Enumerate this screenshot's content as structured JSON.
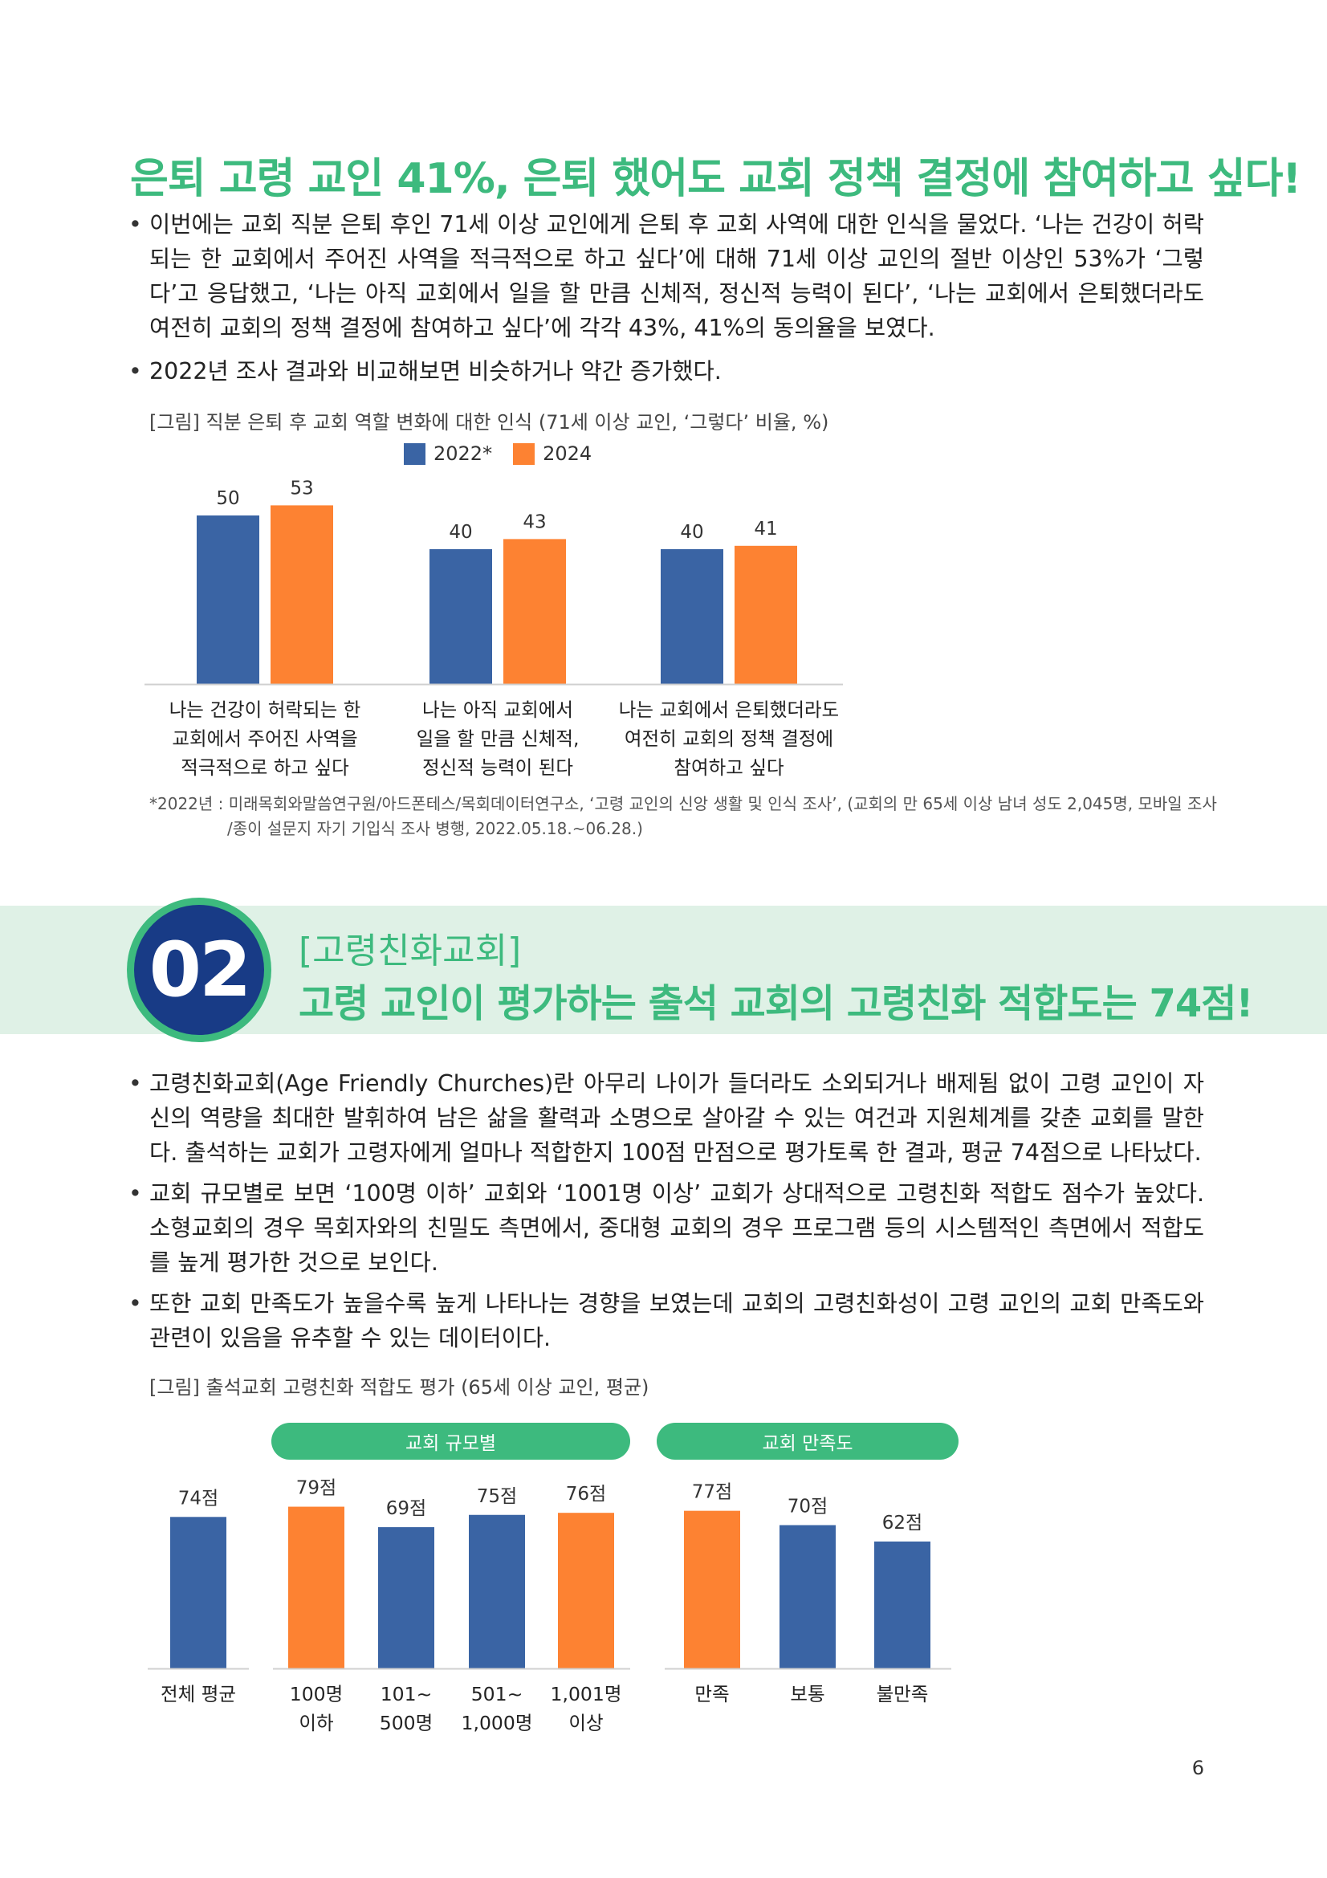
{
  "section1": {
    "title": "은퇴 고령 교인 41%, 은퇴 했어도 교회 정책 결정에 참여하고 싶다!",
    "bullets": [
      "이번에는 교회 직분 은퇴 후인 71세 이상 교인에게 은퇴 후 교회 사역에 대한 인식을 물었다. ‘나는 건강이 허락되는 한 교회에서 주어진 사역을 적극적으로 하고 싶다’에 대해 71세 이상 교인의 절반 이상인 53%가 ‘그렇다’고 응답했고, ‘나는 아직 교회에서 일을 할 만큼 신체적, 정신적 능력이 된다’, ‘나는 교회에서 은퇴했더라도 여전히 교회의 정책 결정에 참여하고 싶다’에 각각 43%, 41%의 동의율을 보였다.",
      "2022년 조사 결과와 비교해보면 비슷하거나 약간 증가했다."
    ],
    "figure_caption": "[그림] 직분 은퇴 후 교회 역할 변화에 대한 인식 (71세 이상 교인, ‘그렇다’ 비율, %)",
    "footnote_line1": "*2022년 : 미래목회와말씀연구원/아드폰테스/목회데이터연구소, ‘고령 교인의 신앙 생활 및 인식 조사’, (교회의 만 65세 이상 남녀 성도 2,045명, 모바일 조사",
    "footnote_line2": "/종이 설문지 자기 기입식 조사 병행, 2022.05.18.~06.28.)"
  },
  "section2": {
    "number": "02",
    "kicker": "[고령친화교회]",
    "title": "고령 교인이 평가하는 출석 교회의 고령친화 적합도는 74점!",
    "bullets": [
      "고령친화교회(Age Friendly Churches)란 아무리 나이가 들더라도 소외되거나 배제됨 없이 고령 교인이 자신의 역량을 최대한 발휘하여 남은 삶을 활력과 소명으로 살아갈 수 있는 여건과 지원체계를 갖춘 교회를 말한다. 출석하는 교회가 고령자에게 얼마나 적합한지 100점 만점으로 평가토록 한 결과, 평균 74점으로 나타났다.",
      "교회 규모별로 보면 ‘100명 이하’ 교회와 ‘1001명 이상’ 교회가 상대적으로 고령친화 적합도 점수가 높았다. 소형교회의 경우 목회자와의 친밀도 측면에서, 중대형 교회의 경우 프로그램 등의 시스템적인 측면에서 적합도를 높게 평가한 것으로 보인다.",
      "또한 교회 만족도가 높을수록 높게 나타나는 경향을 보였는데 교회의 고령친화성이 고령 교인의 교회 만족도와 관련이 있음을 유추할 수 있는 데이터이다."
    ],
    "figure_caption": "[그림] 출석교회 고령친화 적합도 평가 (65세 이상 교인, 평균)",
    "group_labels": [
      "교회 규모별",
      "교회 만족도"
    ]
  },
  "page_number": "6",
  "colors": {
    "accent_green": "#3dba7e",
    "blue": "#3a64a4",
    "orange": "#fd8232",
    "navy": "#183b86"
  },
  "chart_data": [
    {
      "type": "bar",
      "categories": [
        "나는 건강이 허락되는 한 교회에서 주어진 사역을 적극적으로 하고 싶다",
        "나는 아직 교회에서 일을 할 만큼 신체적, 정신적 능력이 된다",
        "나는 교회에서 은퇴했더라도 여전히 교회의 정책 결정에 참여하고 싶다"
      ],
      "category_lines": [
        [
          "나는 건강이 허락되는 한",
          "교회에서 주어진 사역을",
          "적극적으로 하고 싶다"
        ],
        [
          "나는 아직 교회에서",
          "일을 할 만큼 신체적,",
          "정신적 능력이 된다"
        ],
        [
          "나는 교회에서 은퇴했더라도",
          "여전히 교회의 정책 결정에",
          "참여하고 싶다"
        ]
      ],
      "series": [
        {
          "name": "2022*",
          "values": [
            50,
            40,
            40
          ],
          "color": "#3a64a4"
        },
        {
          "name": "2024",
          "values": [
            53,
            43,
            41
          ],
          "color": "#fd8232"
        }
      ],
      "ylim": [
        0,
        60
      ],
      "legend": "top-center",
      "grid": false
    },
    {
      "type": "bar",
      "categories": [
        "전체 평균",
        "100명 이하",
        "101~ 500명",
        "501~ 1,000명",
        "1,001명 이상",
        "만족",
        "보통",
        "불만족"
      ],
      "category_lines": [
        [
          "전체 평균"
        ],
        [
          "100명",
          "이하"
        ],
        [
          "101~",
          "500명"
        ],
        [
          "501~",
          "1,000명"
        ],
        [
          "1,001명",
          "이상"
        ],
        [
          "만족"
        ],
        [
          "보통"
        ],
        [
          "불만족"
        ]
      ],
      "values": [
        74,
        79,
        69,
        75,
        76,
        77,
        70,
        62
      ],
      "value_labels": [
        "74점",
        "79점",
        "69점",
        "75점",
        "76점",
        "77점",
        "70점",
        "62점"
      ],
      "colors": [
        "#3a64a4",
        "#fd8232",
        "#3a64a4",
        "#3a64a4",
        "#fd8232",
        "#fd8232",
        "#3a64a4",
        "#3a64a4"
      ],
      "groups": [
        {
          "label": "교회 규모별",
          "indices": [
            1,
            2,
            3,
            4
          ]
        },
        {
          "label": "교회 만족도",
          "indices": [
            5,
            6,
            7
          ]
        }
      ],
      "grid": false
    }
  ]
}
